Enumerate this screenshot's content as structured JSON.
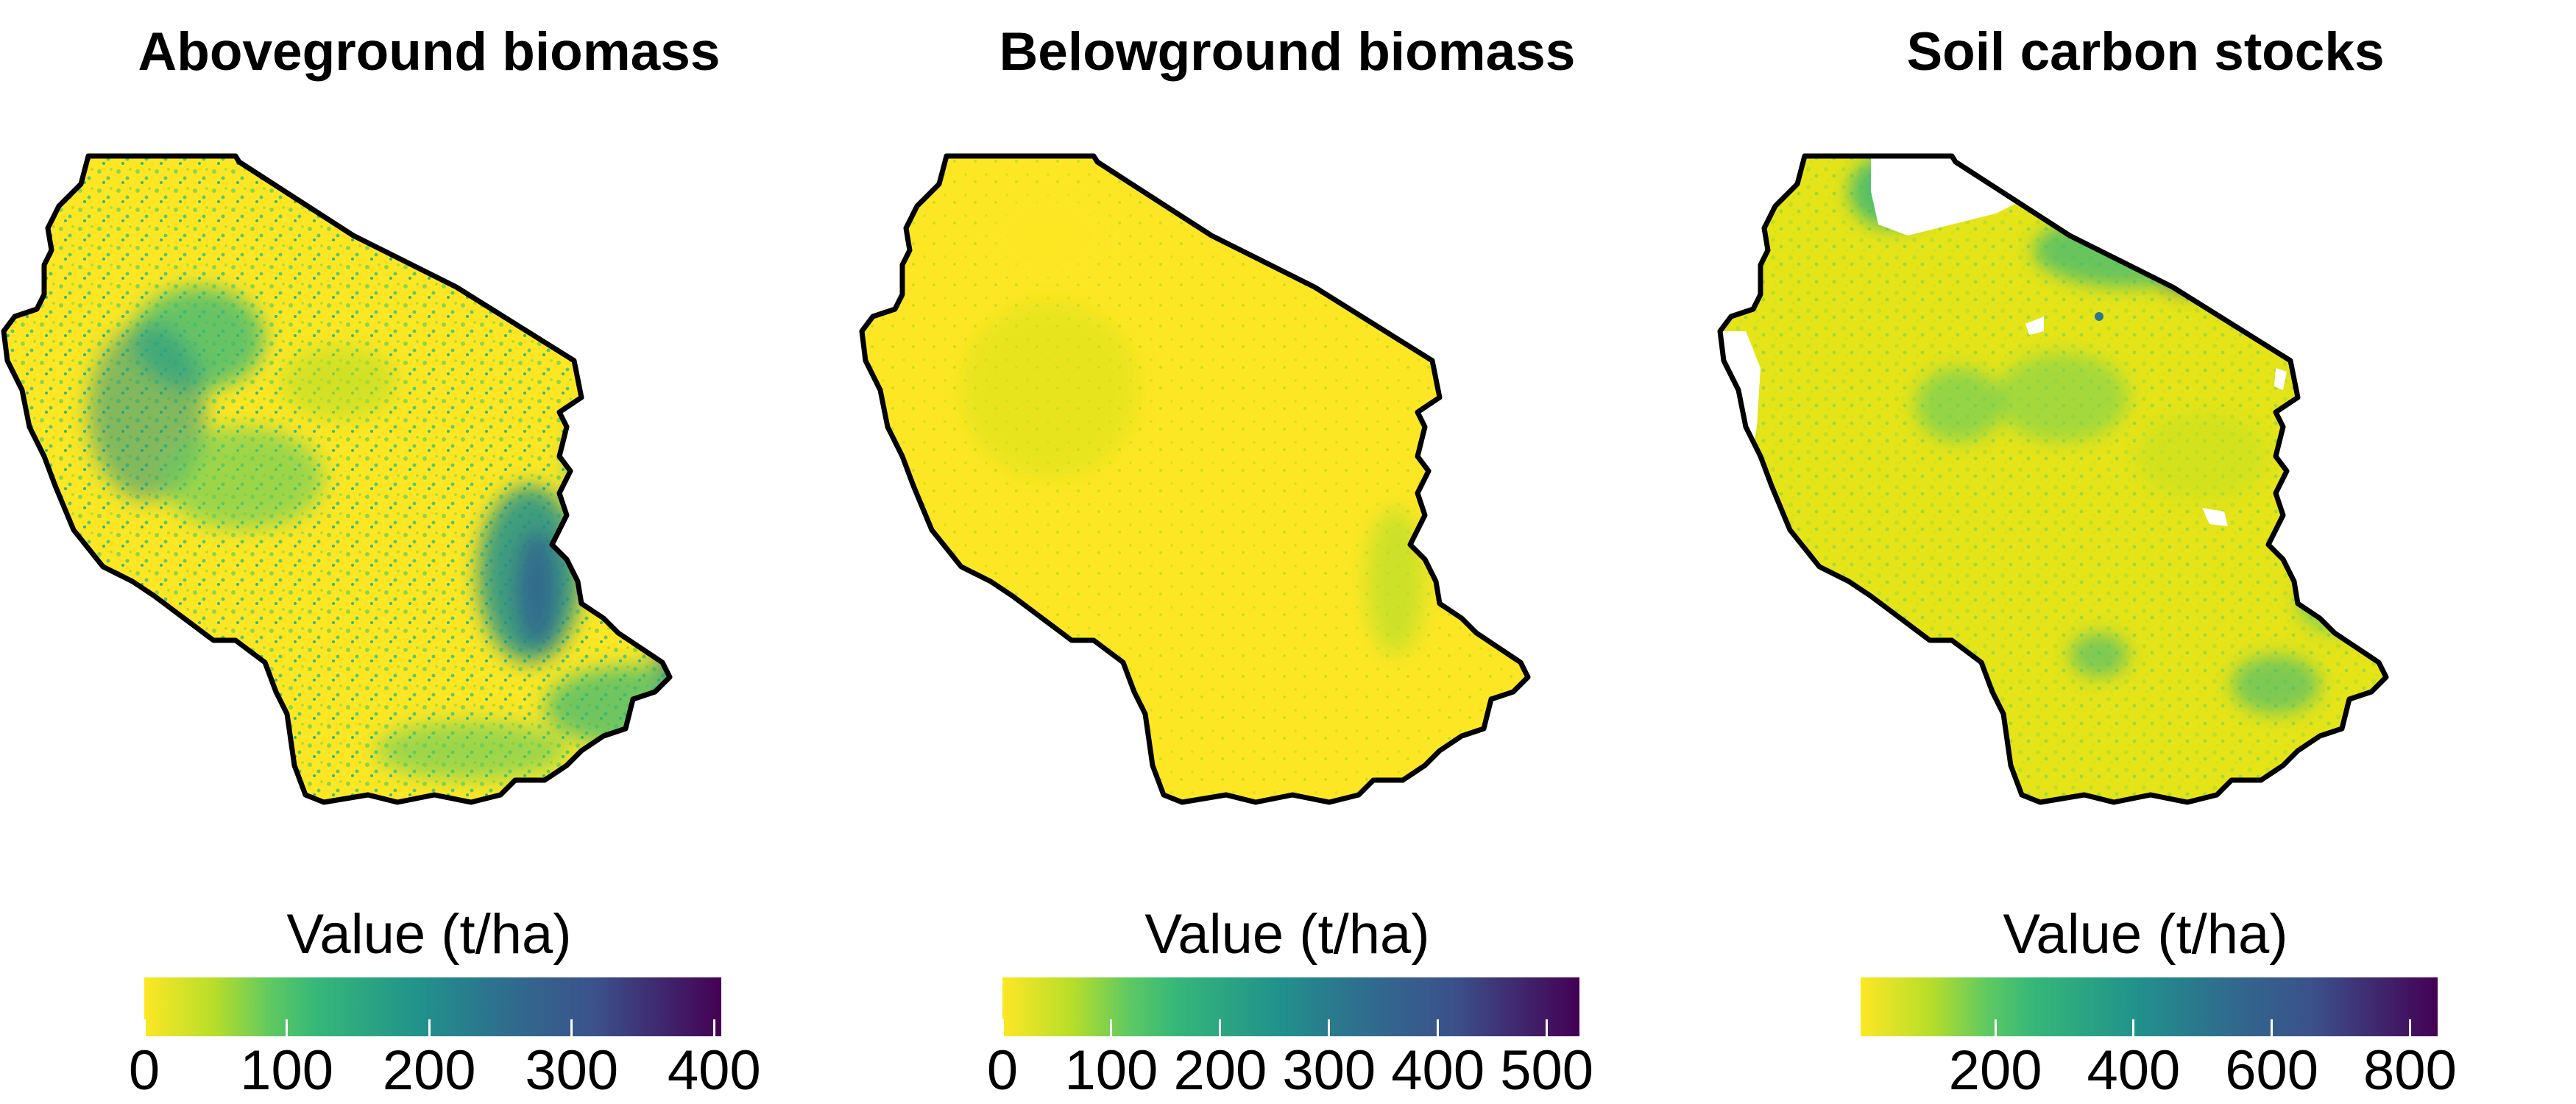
{
  "panels": [
    {
      "title": "Aboveground biomass",
      "legend": {
        "title": "Value (t/ha)",
        "min": 0,
        "max": 405,
        "ticks": [
          {
            "value": 0,
            "label": "0"
          },
          {
            "value": 100,
            "label": "100"
          },
          {
            "value": 200,
            "label": "200"
          },
          {
            "value": 300,
            "label": "300"
          },
          {
            "value": 400,
            "label": "400"
          }
        ]
      }
    },
    {
      "title": "Belowground biomass",
      "legend": {
        "title": "Value (t/ha)",
        "min": 0,
        "max": 530,
        "ticks": [
          {
            "value": 0,
            "label": "0"
          },
          {
            "value": 100,
            "label": "100"
          },
          {
            "value": 200,
            "label": "200"
          },
          {
            "value": 300,
            "label": "300"
          },
          {
            "value": 400,
            "label": "400"
          },
          {
            "value": 500,
            "label": "500"
          }
        ]
      }
    },
    {
      "title": "Soil carbon stocks",
      "legend": {
        "title": "Value (t/ha)",
        "min": 5,
        "max": 840,
        "ticks": [
          {
            "value": 200,
            "label": "200"
          },
          {
            "value": 400,
            "label": "400"
          },
          {
            "value": 600,
            "label": "600"
          },
          {
            "value": 800,
            "label": "800"
          }
        ]
      }
    }
  ],
  "colors": {
    "low": "#fde725",
    "mid_low": "#5ec962",
    "mid": "#21918c",
    "mid_high": "#3b528b",
    "high": "#440154",
    "border": "#000000",
    "nodata": "#ffffff"
  }
}
